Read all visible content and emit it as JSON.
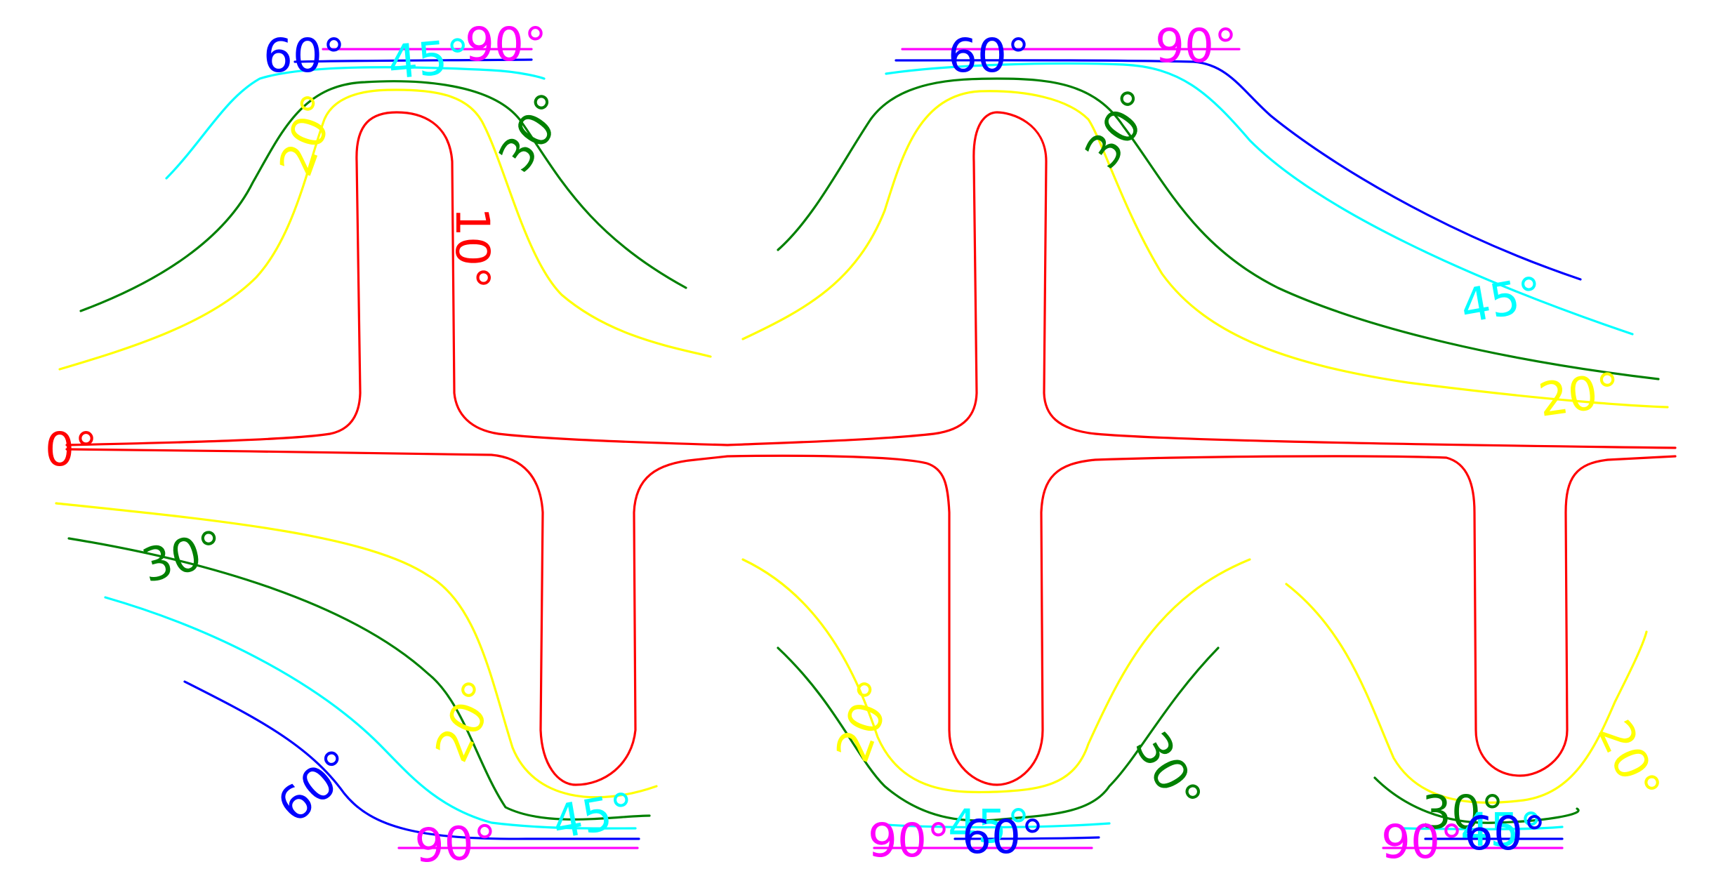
{
  "chart_data": {
    "type": "contour",
    "title": "",
    "xlabel": "",
    "ylabel": "",
    "grid": false,
    "levels": [
      {
        "name": "0°",
        "value": 0,
        "color": "#ff0000"
      },
      {
        "name": "10°",
        "value": 10,
        "color": "#ff0000"
      },
      {
        "name": "20°",
        "value": 20,
        "color": "#ffff00"
      },
      {
        "name": "30°",
        "value": 30,
        "color": "#008000"
      },
      {
        "name": "45°",
        "value": 45,
        "color": "#00ffff"
      },
      {
        "name": "60°",
        "value": 60,
        "color": "#0000ff"
      },
      {
        "name": "90°",
        "value": 90,
        "color": "#ff00ff"
      }
    ],
    "labels": [
      {
        "text": "60°",
        "level": 60
      },
      {
        "text": "45°",
        "level": 45
      },
      {
        "text": "90°",
        "level": 90
      },
      {
        "text": "20°",
        "level": 20
      },
      {
        "text": "30°",
        "level": 30
      },
      {
        "text": "10°",
        "level": 10
      },
      {
        "text": "60°",
        "level": 60
      },
      {
        "text": "90°",
        "level": 90
      },
      {
        "text": "30°",
        "level": 30
      },
      {
        "text": "45°",
        "level": 45
      },
      {
        "text": "20°",
        "level": 20
      },
      {
        "text": "0°",
        "level": 0
      },
      {
        "text": "30°",
        "level": 30
      },
      {
        "text": "20°",
        "level": 20
      },
      {
        "text": "60°",
        "level": 60
      },
      {
        "text": "45°",
        "level": 45
      },
      {
        "text": "90°",
        "level": 90
      },
      {
        "text": "20°",
        "level": 20
      },
      {
        "text": "30°",
        "level": 30
      },
      {
        "text": "45°",
        "level": 45
      },
      {
        "text": "90°",
        "level": 90
      },
      {
        "text": "60°",
        "level": 60
      },
      {
        "text": "20°",
        "level": 20
      },
      {
        "text": "30°",
        "level": 30
      },
      {
        "text": "45°",
        "level": 45
      },
      {
        "text": "90°",
        "level": 90
      },
      {
        "text": "60°",
        "level": 60
      }
    ]
  }
}
